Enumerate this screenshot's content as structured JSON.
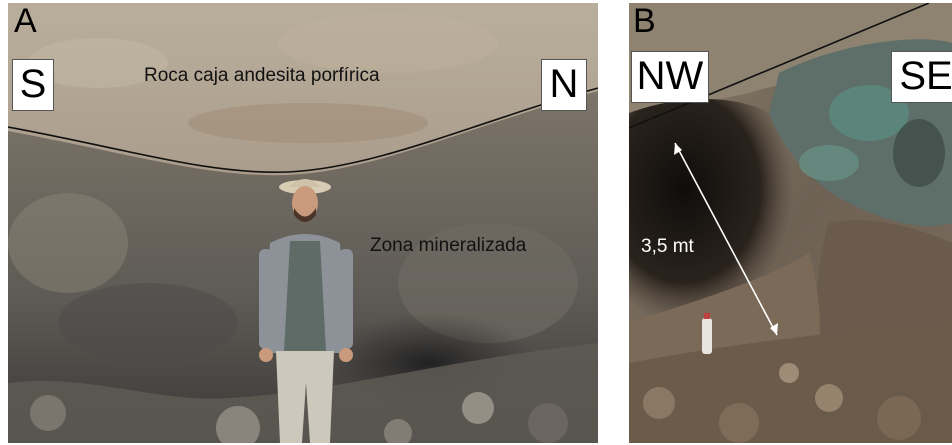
{
  "panel_a": {
    "letter": "A",
    "orientation_left": "S",
    "orientation_right": "N",
    "label_upper": "Roca caja andesita porfírica",
    "label_lower": "Zona mineralizada"
  },
  "panel_b": {
    "letter": "B",
    "orientation_left": "NW",
    "orientation_right": "SE",
    "measurement": "3,5 mt"
  },
  "colors": {
    "host_rock": "#a89a88",
    "mineralized_zone": "#6e6a62",
    "dark_cavity": "#1e1a16",
    "copper_oxide": "#5a8a80",
    "contact_line": "#111111",
    "measure_arrow": "#ffffff"
  }
}
